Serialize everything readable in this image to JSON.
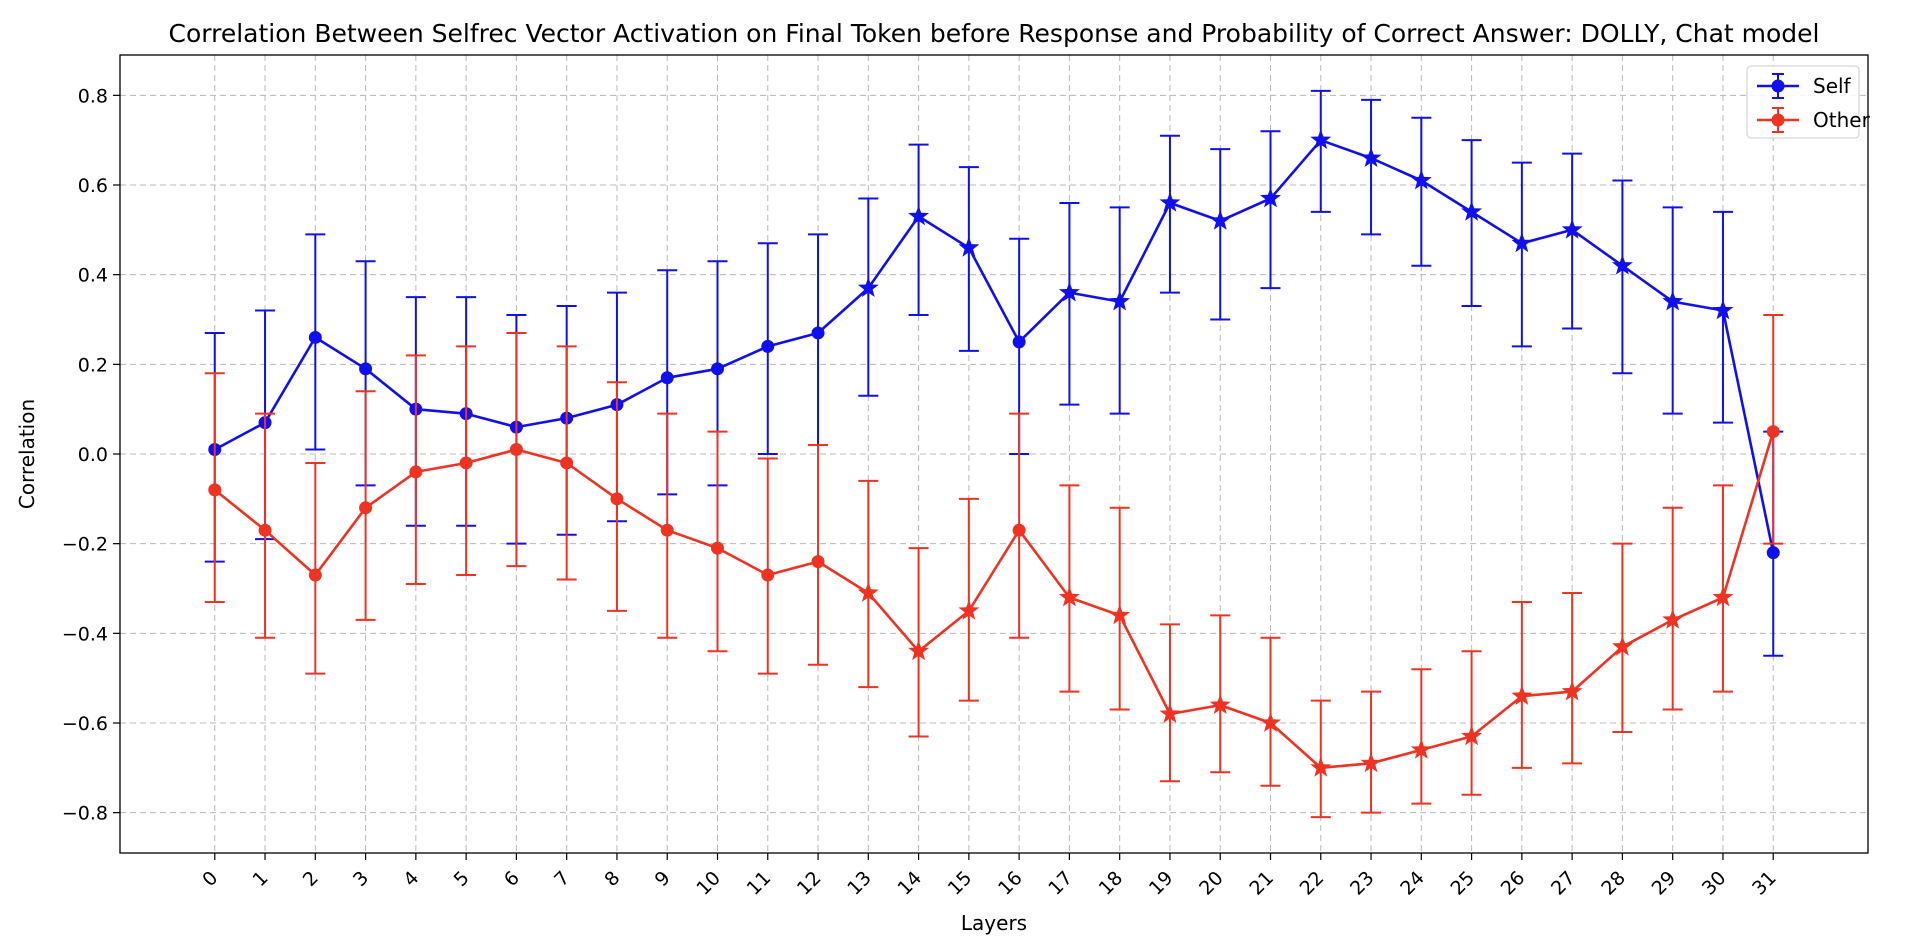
{
  "chart_data": {
    "type": "line",
    "title": "Correlation Between Selfrec Vector Activation on Final Token before Response and Probability of Correct Answer: DOLLY, Chat model",
    "xlabel": "Layers",
    "ylabel": "Correlation",
    "ylim": [
      -0.89,
      0.89
    ],
    "y_ticks": [
      -0.8,
      -0.6,
      -0.4,
      -0.2,
      0.0,
      0.2,
      0.4,
      0.6,
      0.8
    ],
    "y_tick_labels": [
      "−0.8",
      "−0.6",
      "−0.4",
      "−0.2",
      "0.0",
      "0.2",
      "0.4",
      "0.6",
      "0.8"
    ],
    "x": [
      0,
      1,
      2,
      3,
      4,
      5,
      6,
      7,
      8,
      9,
      10,
      11,
      12,
      13,
      14,
      15,
      16,
      17,
      18,
      19,
      20,
      21,
      22,
      23,
      24,
      25,
      26,
      27,
      28,
      29,
      30,
      31
    ],
    "x_tick_labels": [
      "0",
      "1",
      "2",
      "3",
      "4",
      "5",
      "6",
      "7",
      "8",
      "9",
      "10",
      "11",
      "12",
      "13",
      "14",
      "15",
      "16",
      "17",
      "18",
      "19",
      "20",
      "21",
      "22",
      "23",
      "24",
      "25",
      "26",
      "27",
      "28",
      "29",
      "30",
      "31"
    ],
    "grid": true,
    "legend_position": "top-right",
    "series": [
      {
        "name": "Self",
        "color": "#1010ee",
        "values": [
          0.01,
          0.07,
          0.26,
          0.19,
          0.1,
          0.09,
          0.06,
          0.08,
          0.11,
          0.17,
          0.19,
          0.24,
          0.27,
          0.37,
          0.53,
          0.46,
          0.25,
          0.36,
          0.34,
          0.56,
          0.52,
          0.57,
          0.7,
          0.66,
          0.61,
          0.54,
          0.47,
          0.5,
          0.42,
          0.34,
          0.32,
          -0.22
        ],
        "upper": [
          0.27,
          0.32,
          0.49,
          0.43,
          0.35,
          0.35,
          0.31,
          0.33,
          0.36,
          0.41,
          0.43,
          0.47,
          0.49,
          0.57,
          0.69,
          0.64,
          0.48,
          0.56,
          0.55,
          0.71,
          0.68,
          0.72,
          0.81,
          0.79,
          0.75,
          0.7,
          0.65,
          0.67,
          0.61,
          0.55,
          0.54,
          0.05
        ],
        "lower": [
          -0.24,
          -0.19,
          0.01,
          -0.07,
          -0.16,
          -0.16,
          -0.2,
          -0.18,
          -0.15,
          -0.09,
          -0.07,
          0.0,
          0.02,
          0.13,
          0.31,
          0.23,
          0.0,
          0.11,
          0.09,
          0.36,
          0.3,
          0.37,
          0.54,
          0.49,
          0.42,
          0.33,
          0.24,
          0.28,
          0.18,
          0.09,
          0.07,
          -0.45
        ],
        "marker_style": [
          "circle",
          "circle",
          "circle",
          "circle",
          "circle",
          "circle",
          "circle",
          "circle",
          "circle",
          "circle",
          "circle",
          "circle",
          "circle",
          "star",
          "star",
          "star",
          "circle",
          "star",
          "star",
          "star",
          "star",
          "star",
          "star",
          "star",
          "star",
          "star",
          "star",
          "star",
          "star",
          "star",
          "star",
          "circle"
        ]
      },
      {
        "name": "Other",
        "color": "#ee3322",
        "values": [
          -0.08,
          -0.17,
          -0.27,
          -0.12,
          -0.04,
          -0.02,
          0.01,
          -0.02,
          -0.1,
          -0.17,
          -0.21,
          -0.27,
          -0.24,
          -0.31,
          -0.44,
          -0.35,
          -0.17,
          -0.32,
          -0.36,
          -0.58,
          -0.56,
          -0.6,
          -0.7,
          -0.69,
          -0.66,
          -0.63,
          -0.54,
          -0.53,
          -0.43,
          -0.37,
          -0.32,
          0.05
        ],
        "upper": [
          0.18,
          0.09,
          -0.02,
          0.14,
          0.22,
          0.24,
          0.27,
          0.24,
          0.16,
          0.09,
          0.05,
          -0.01,
          0.02,
          -0.06,
          -0.21,
          -0.1,
          0.09,
          -0.07,
          -0.12,
          -0.38,
          -0.36,
          -0.41,
          -0.55,
          -0.53,
          -0.48,
          -0.44,
          -0.33,
          -0.31,
          -0.2,
          -0.12,
          -0.07,
          0.31
        ],
        "lower": [
          -0.33,
          -0.41,
          -0.49,
          -0.37,
          -0.29,
          -0.27,
          -0.25,
          -0.28,
          -0.35,
          -0.41,
          -0.44,
          -0.49,
          -0.47,
          -0.52,
          -0.63,
          -0.55,
          -0.41,
          -0.53,
          -0.57,
          -0.73,
          -0.71,
          -0.74,
          -0.81,
          -0.8,
          -0.78,
          -0.76,
          -0.7,
          -0.69,
          -0.62,
          -0.57,
          -0.53,
          -0.2
        ],
        "marker_style": [
          "circle",
          "circle",
          "circle",
          "circle",
          "circle",
          "circle",
          "circle",
          "circle",
          "circle",
          "circle",
          "circle",
          "circle",
          "circle",
          "star",
          "star",
          "star",
          "circle",
          "star",
          "star",
          "star",
          "star",
          "star",
          "star",
          "star",
          "star",
          "star",
          "star",
          "star",
          "star",
          "star",
          "star",
          "circle"
        ]
      }
    ]
  }
}
